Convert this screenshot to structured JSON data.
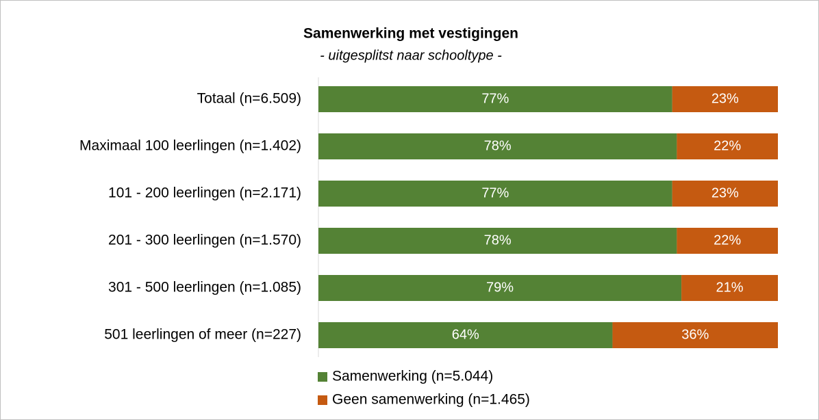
{
  "chart_data": {
    "type": "stacked-bar-horizontal",
    "title": "Samenwerking met vestigingen",
    "subtitle": "- uitgesplitst naar schooltype -",
    "categories": [
      "Totaal (n=6.509)",
      "Maximaal 100 leerlingen (n=1.402)",
      "101 - 200 leerlingen (n=2.171)",
      "201 - 300 leerlingen (n=1.570)",
      "301 - 500 leerlingen (n=1.085)",
      "501 leerlingen of meer (n=227)"
    ],
    "series": [
      {
        "name": "Samenwerking (n=5.044)",
        "color": "#548235",
        "values": [
          77,
          78,
          77,
          78,
          79,
          64
        ],
        "value_labels": [
          "77%",
          "78%",
          "77%",
          "78%",
          "79%",
          "64%"
        ]
      },
      {
        "name": "Geen samenwerking (n=1.465)",
        "color": "#c55a11",
        "values": [
          23,
          22,
          23,
          22,
          21,
          36
        ],
        "value_labels": [
          "23%",
          "22%",
          "23%",
          "22%",
          "21%",
          "36%"
        ]
      }
    ],
    "xlim": [
      0,
      100
    ],
    "legend": "bottom"
  }
}
